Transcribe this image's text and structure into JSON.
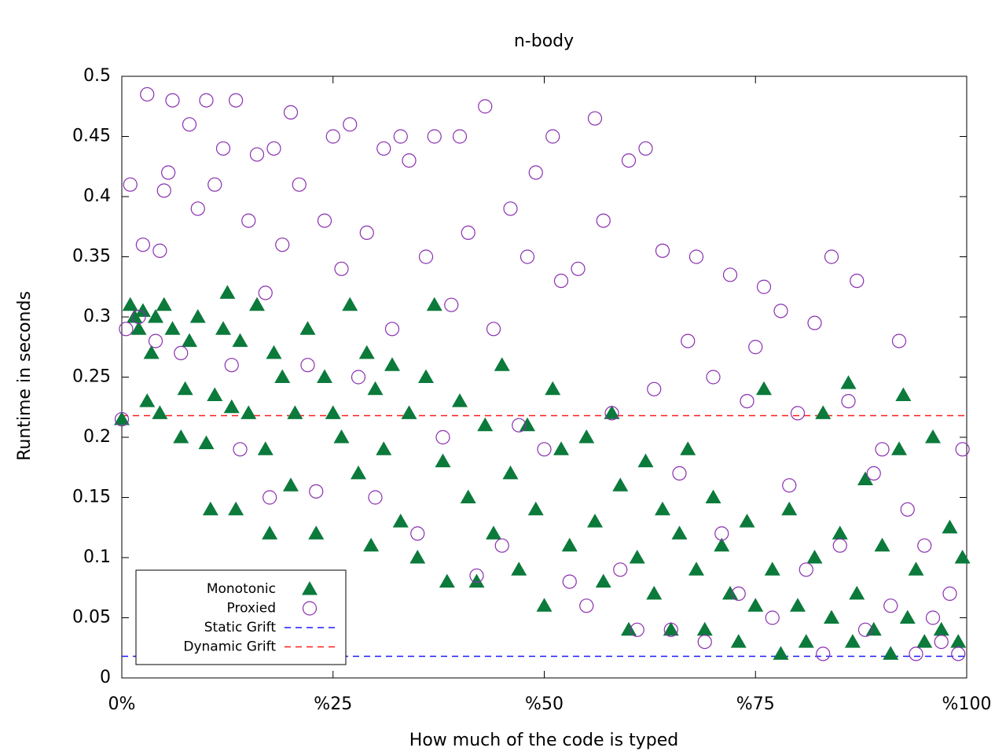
{
  "chart_data": {
    "type": "scatter",
    "title": "n-body",
    "xlabel": "How much of the code is typed",
    "ylabel": "Runtime in seconds",
    "xlim": [
      0,
      100
    ],
    "ylim": [
      0,
      0.5
    ],
    "xticks": [
      {
        "value": 0,
        "label": "0%"
      },
      {
        "value": 25,
        "label": "%25"
      },
      {
        "value": 50,
        "label": "%50"
      },
      {
        "value": 75,
        "label": "%75"
      },
      {
        "value": 100,
        "label": "%100"
      }
    ],
    "yticks": [
      0,
      0.05,
      0.1,
      0.15,
      0.2,
      0.25,
      0.3,
      0.35,
      0.4,
      0.45,
      0.5
    ],
    "legend": "bottom-left",
    "series": [
      {
        "name": "Monotonic",
        "color": "#0b7a3b",
        "marker": "triangle",
        "x": [
          0,
          1,
          1.5,
          2,
          2.5,
          3,
          3.5,
          4,
          4.5,
          5,
          6,
          7,
          7.5,
          8,
          9,
          10,
          10.5,
          11,
          12,
          12.5,
          13,
          13.5,
          14,
          15,
          16,
          17,
          17.5,
          18,
          19,
          20,
          20.5,
          22,
          23,
          24,
          25,
          26,
          27,
          28,
          29,
          29.5,
          30,
          31,
          32,
          33,
          34,
          35,
          36,
          37,
          38,
          38.5,
          40,
          41,
          42,
          43,
          44,
          45,
          46,
          47,
          48,
          49,
          50,
          51,
          52,
          53,
          55,
          56,
          57,
          58,
          59,
          60,
          61,
          62,
          63,
          64,
          65,
          66,
          67,
          68,
          69,
          70,
          71,
          72,
          73,
          74,
          75,
          76,
          77,
          78,
          79,
          80,
          81,
          82,
          83,
          84,
          85,
          86,
          86.5,
          87,
          88,
          89,
          90,
          91,
          92,
          92.5,
          93,
          94,
          95,
          96,
          97,
          98,
          99,
          99.5
        ],
        "values": [
          0.215,
          0.31,
          0.3,
          0.29,
          0.305,
          0.23,
          0.27,
          0.3,
          0.22,
          0.31,
          0.29,
          0.2,
          0.24,
          0.28,
          0.3,
          0.195,
          0.14,
          0.235,
          0.29,
          0.32,
          0.225,
          0.14,
          0.28,
          0.22,
          0.31,
          0.19,
          0.12,
          0.27,
          0.25,
          0.16,
          0.22,
          0.29,
          0.12,
          0.25,
          0.22,
          0.2,
          0.31,
          0.17,
          0.27,
          0.11,
          0.24,
          0.19,
          0.26,
          0.13,
          0.22,
          0.1,
          0.25,
          0.31,
          0.18,
          0.08,
          0.23,
          0.15,
          0.08,
          0.21,
          0.12,
          0.26,
          0.17,
          0.09,
          0.21,
          0.14,
          0.06,
          0.24,
          0.19,
          0.11,
          0.2,
          0.13,
          0.08,
          0.22,
          0.16,
          0.04,
          0.1,
          0.18,
          0.07,
          0.14,
          0.04,
          0.12,
          0.19,
          0.09,
          0.04,
          0.15,
          0.11,
          0.07,
          0.03,
          0.13,
          0.06,
          0.24,
          0.09,
          0.02,
          0.14,
          0.06,
          0.03,
          0.1,
          0.22,
          0.05,
          0.12,
          0.245,
          0.03,
          0.07,
          0.165,
          0.04,
          0.11,
          0.02,
          0.19,
          0.235,
          0.05,
          0.09,
          0.03,
          0.2,
          0.04,
          0.125,
          0.03,
          0.1
        ]
      },
      {
        "name": "Proxied",
        "color": "#8a2fb0",
        "marker": "circle",
        "x": [
          0,
          0.5,
          1,
          2,
          2.5,
          3,
          4,
          4.5,
          5,
          5.5,
          6,
          7,
          8,
          9,
          10,
          11,
          12,
          13,
          13.5,
          14,
          15,
          16,
          17,
          17.5,
          18,
          19,
          20,
          21,
          22,
          23,
          24,
          25,
          26,
          27,
          28,
          29,
          30,
          31,
          32,
          33,
          34,
          35,
          36,
          37,
          38,
          39,
          40,
          41,
          42,
          43,
          44,
          45,
          46,
          47,
          48,
          49,
          50,
          51,
          52,
          53,
          54,
          55,
          56,
          57,
          58,
          59,
          60,
          61,
          62,
          63,
          64,
          65,
          66,
          67,
          68,
          69,
          70,
          71,
          72,
          73,
          74,
          75,
          76,
          77,
          78,
          79,
          80,
          81,
          82,
          83,
          84,
          85,
          86,
          87,
          88,
          89,
          90,
          91,
          92,
          93,
          94,
          95,
          96,
          97,
          98,
          99,
          99.5
        ],
        "values": [
          0.215,
          0.29,
          0.41,
          0.3,
          0.36,
          0.485,
          0.28,
          0.355,
          0.405,
          0.42,
          0.48,
          0.27,
          0.46,
          0.39,
          0.48,
          0.41,
          0.44,
          0.26,
          0.48,
          0.19,
          0.38,
          0.435,
          0.32,
          0.15,
          0.44,
          0.36,
          0.47,
          0.41,
          0.26,
          0.155,
          0.38,
          0.45,
          0.34,
          0.46,
          0.25,
          0.37,
          0.15,
          0.44,
          0.29,
          0.45,
          0.43,
          0.12,
          0.35,
          0.45,
          0.2,
          0.31,
          0.45,
          0.37,
          0.085,
          0.475,
          0.29,
          0.11,
          0.39,
          0.21,
          0.35,
          0.42,
          0.19,
          0.45,
          0.33,
          0.08,
          0.34,
          0.06,
          0.465,
          0.38,
          0.22,
          0.09,
          0.43,
          0.04,
          0.44,
          0.24,
          0.355,
          0.04,
          0.17,
          0.28,
          0.35,
          0.03,
          0.25,
          0.12,
          0.335,
          0.07,
          0.23,
          0.275,
          0.325,
          0.05,
          0.305,
          0.16,
          0.22,
          0.09,
          0.295,
          0.02,
          0.35,
          0.11,
          0.23,
          0.33,
          0.04,
          0.17,
          0.19,
          0.06,
          0.28,
          0.14,
          0.02,
          0.11,
          0.05,
          0.03,
          0.07,
          0.02,
          0.19
        ]
      }
    ],
    "hlines": [
      {
        "name": "Static Grift",
        "color": "#1a1aff",
        "value": 0.018
      },
      {
        "name": "Dynamic Grift",
        "color": "#ff1a1a",
        "value": 0.218
      }
    ]
  }
}
